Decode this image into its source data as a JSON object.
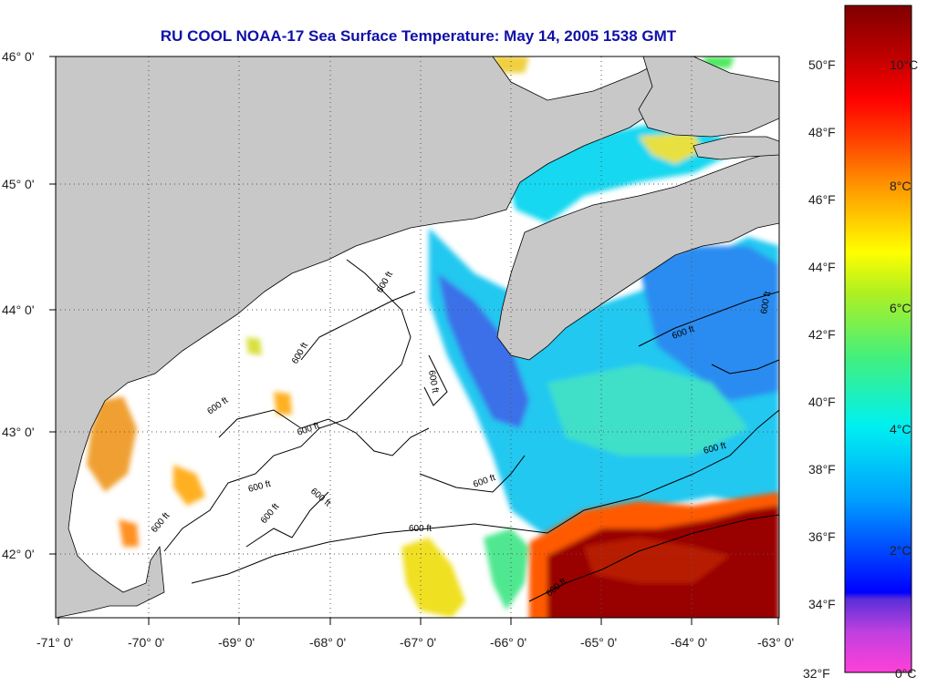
{
  "title": "RU COOL  NOAA-17  Sea Surface Temperature:  May 14, 2005 1538 GMT",
  "axes": {
    "lat_labels": [
      "46° 0'",
      "45° 0'",
      "44° 0'",
      "43° 0'",
      "42° 0'"
    ],
    "lon_labels": [
      "-71° 0'",
      "-70° 0'",
      "-69° 0'",
      "-68° 0'",
      "-67° 0'",
      "-66° 0'",
      "-65° 0'",
      "-64° 0'",
      "-63° 0'"
    ]
  },
  "contour_label": "600 ft",
  "colorbar": {
    "fahrenheit": [
      "50°F",
      "48°F",
      "46°F",
      "44°F",
      "42°F",
      "40°F",
      "38°F",
      "36°F",
      "34°F",
      "32°F"
    ],
    "celsius": [
      "10°C",
      "8°C",
      "6°C",
      "4°C",
      "2°C",
      "0°C"
    ],
    "stops": [
      "#ff40d8",
      "#c040e0",
      "#5a2fd8",
      "#0000ff",
      "#00a0ff",
      "#00f0f0",
      "#40f080",
      "#b0f020",
      "#ffff00",
      "#ffa000",
      "#ff4000",
      "#ff0000",
      "#b80000",
      "#800000"
    ]
  },
  "colors": {
    "land": "#c8c8c8",
    "ocean_nodata": "#ffffff",
    "title": "#1010a8"
  }
}
